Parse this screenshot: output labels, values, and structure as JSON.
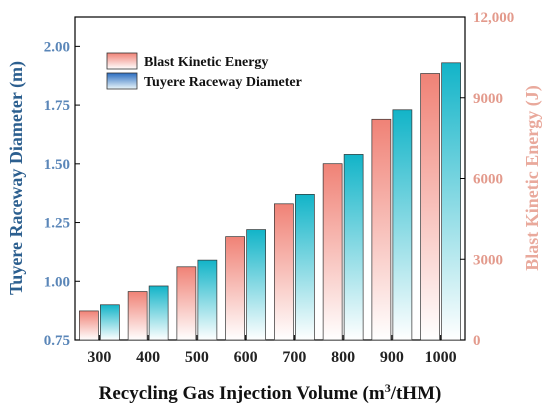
{
  "chart_data": {
    "type": "bar",
    "categories": [
      "300",
      "400",
      "500",
      "600",
      "700",
      "800",
      "900",
      "1000"
    ],
    "series": [
      {
        "name": "Blast Kinetic Energy",
        "axis": "right",
        "values": [
          1080,
          1800,
          2720,
          3840,
          5060,
          6550,
          8200,
          9900
        ],
        "color": "#f08a80"
      },
      {
        "name": "Tuyere Raceway Diameter",
        "axis": "left",
        "values": [
          0.9,
          0.98,
          1.09,
          1.22,
          1.37,
          1.54,
          1.73,
          1.93
        ],
        "color": "#1ab5c6"
      }
    ],
    "xlabel": "Recycling Gas Injection Volume (m",
    "xlabel_sup": "3",
    "xlabel_tail": "/tHM)",
    "ylabel_left": "Tuyere Raceway Diameter (m)",
    "ylabel_right": "Blast Kinetic Energy (J)",
    "ylim_left": [
      0.75,
      2.125
    ],
    "ylim_right": [
      0,
      12000
    ],
    "yticks_left": [
      "0.75",
      "1.00",
      "1.25",
      "1.50",
      "1.75",
      "2.00"
    ],
    "yticks_right": [
      "0",
      "3000",
      "6000",
      "9000",
      "12,000"
    ],
    "legend_position": "top-left",
    "left_axis_color": "#5a86b8",
    "right_axis_color": "#e39a8c"
  }
}
